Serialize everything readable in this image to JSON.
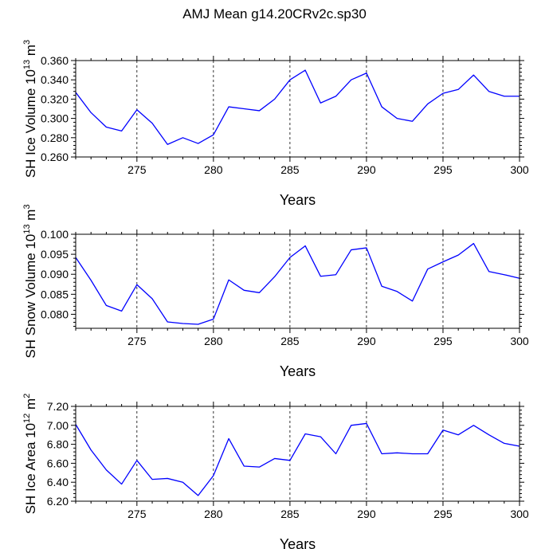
{
  "page": {
    "title": "AMJ Mean g14.20CRv2c.sp30"
  },
  "chart_data": [
    {
      "type": "line",
      "ylabel": "SH Ice Volume 10",
      "ylabel_exp": "13",
      "ylabel_unit": " m",
      "ylabel_unit_exp": "3",
      "xlabel": "Years",
      "xlim": [
        271,
        300
      ],
      "ylim": [
        0.26,
        0.36
      ],
      "x_ticks": [
        275,
        280,
        285,
        290,
        295,
        300
      ],
      "y_ticks": [
        0.26,
        0.28,
        0.3,
        0.32,
        0.34,
        0.36
      ],
      "y_tick_labels": [
        "0.260",
        "0.280",
        "0.300",
        "0.320",
        "0.340",
        "0.360"
      ],
      "vlines": [
        275,
        280,
        285,
        290,
        295
      ],
      "line_color": "#0000ff",
      "x": [
        271,
        272,
        273,
        274,
        275,
        276,
        277,
        278,
        279,
        280,
        281,
        282,
        283,
        284,
        285,
        286,
        287,
        288,
        289,
        290,
        291,
        292,
        293,
        294,
        295,
        296,
        297,
        298,
        299,
        300
      ],
      "values": [
        0.327,
        0.306,
        0.291,
        0.287,
        0.309,
        0.295,
        0.273,
        0.28,
        0.274,
        0.283,
        0.312,
        0.31,
        0.308,
        0.32,
        0.34,
        0.35,
        0.316,
        0.323,
        0.34,
        0.347,
        0.312,
        0.3,
        0.297,
        0.315,
        0.326,
        0.33,
        0.345,
        0.328,
        0.323,
        0.323
      ]
    },
    {
      "type": "line",
      "ylabel": "SH Snow Volume 10",
      "ylabel_exp": "13",
      "ylabel_unit": " m",
      "ylabel_unit_exp": "3",
      "xlabel": "Years",
      "xlim": [
        271,
        300
      ],
      "ylim": [
        0.0765,
        0.1
      ],
      "x_ticks": [
        275,
        280,
        285,
        290,
        295,
        300
      ],
      "y_ticks": [
        0.08,
        0.085,
        0.09,
        0.095,
        0.1
      ],
      "y_tick_labels": [
        "0.080",
        "0.085",
        "0.090",
        "0.095",
        "0.100"
      ],
      "vlines": [
        275,
        280,
        285,
        290,
        295
      ],
      "line_color": "#0000ff",
      "x": [
        271,
        272,
        273,
        274,
        275,
        276,
        277,
        278,
        279,
        280,
        281,
        282,
        283,
        284,
        285,
        286,
        287,
        288,
        289,
        290,
        291,
        292,
        293,
        294,
        295,
        296,
        297,
        298,
        299,
        300
      ],
      "values": [
        0.0942,
        0.0885,
        0.0822,
        0.0808,
        0.0874,
        0.0839,
        0.0781,
        0.0777,
        0.0775,
        0.0788,
        0.0886,
        0.086,
        0.0854,
        0.0894,
        0.0942,
        0.0971,
        0.0895,
        0.0899,
        0.0961,
        0.0966,
        0.087,
        0.0857,
        0.0833,
        0.0913,
        0.0931,
        0.0948,
        0.0977,
        0.0907,
        0.0899,
        0.089
      ]
    },
    {
      "type": "line",
      "ylabel": "SH Ice Area 10",
      "ylabel_exp": "12",
      "ylabel_unit": " m",
      "ylabel_unit_exp": "2",
      "xlabel": "Years",
      "xlim": [
        271,
        300
      ],
      "ylim": [
        6.2,
        7.2
      ],
      "x_ticks": [
        275,
        280,
        285,
        290,
        295,
        300
      ],
      "y_ticks": [
        6.2,
        6.4,
        6.6,
        6.8,
        7.0,
        7.2
      ],
      "y_tick_labels": [
        "6.20",
        "6.40",
        "6.60",
        "6.80",
        "7.00",
        "7.20"
      ],
      "vlines": [
        275,
        280,
        285,
        290,
        295
      ],
      "line_color": "#0000ff",
      "x": [
        271,
        272,
        273,
        274,
        275,
        276,
        277,
        278,
        279,
        280,
        281,
        282,
        283,
        284,
        285,
        286,
        287,
        288,
        289,
        290,
        291,
        292,
        293,
        294,
        295,
        296,
        297,
        298,
        299,
        300
      ],
      "values": [
        7.01,
        6.74,
        6.53,
        6.38,
        6.63,
        6.43,
        6.44,
        6.4,
        6.26,
        6.47,
        6.86,
        6.57,
        6.56,
        6.65,
        6.63,
        6.91,
        6.88,
        6.7,
        7.0,
        7.02,
        6.7,
        6.71,
        6.7,
        6.7,
        6.95,
        6.9,
        7.0,
        6.9,
        6.81,
        6.78
      ]
    }
  ]
}
